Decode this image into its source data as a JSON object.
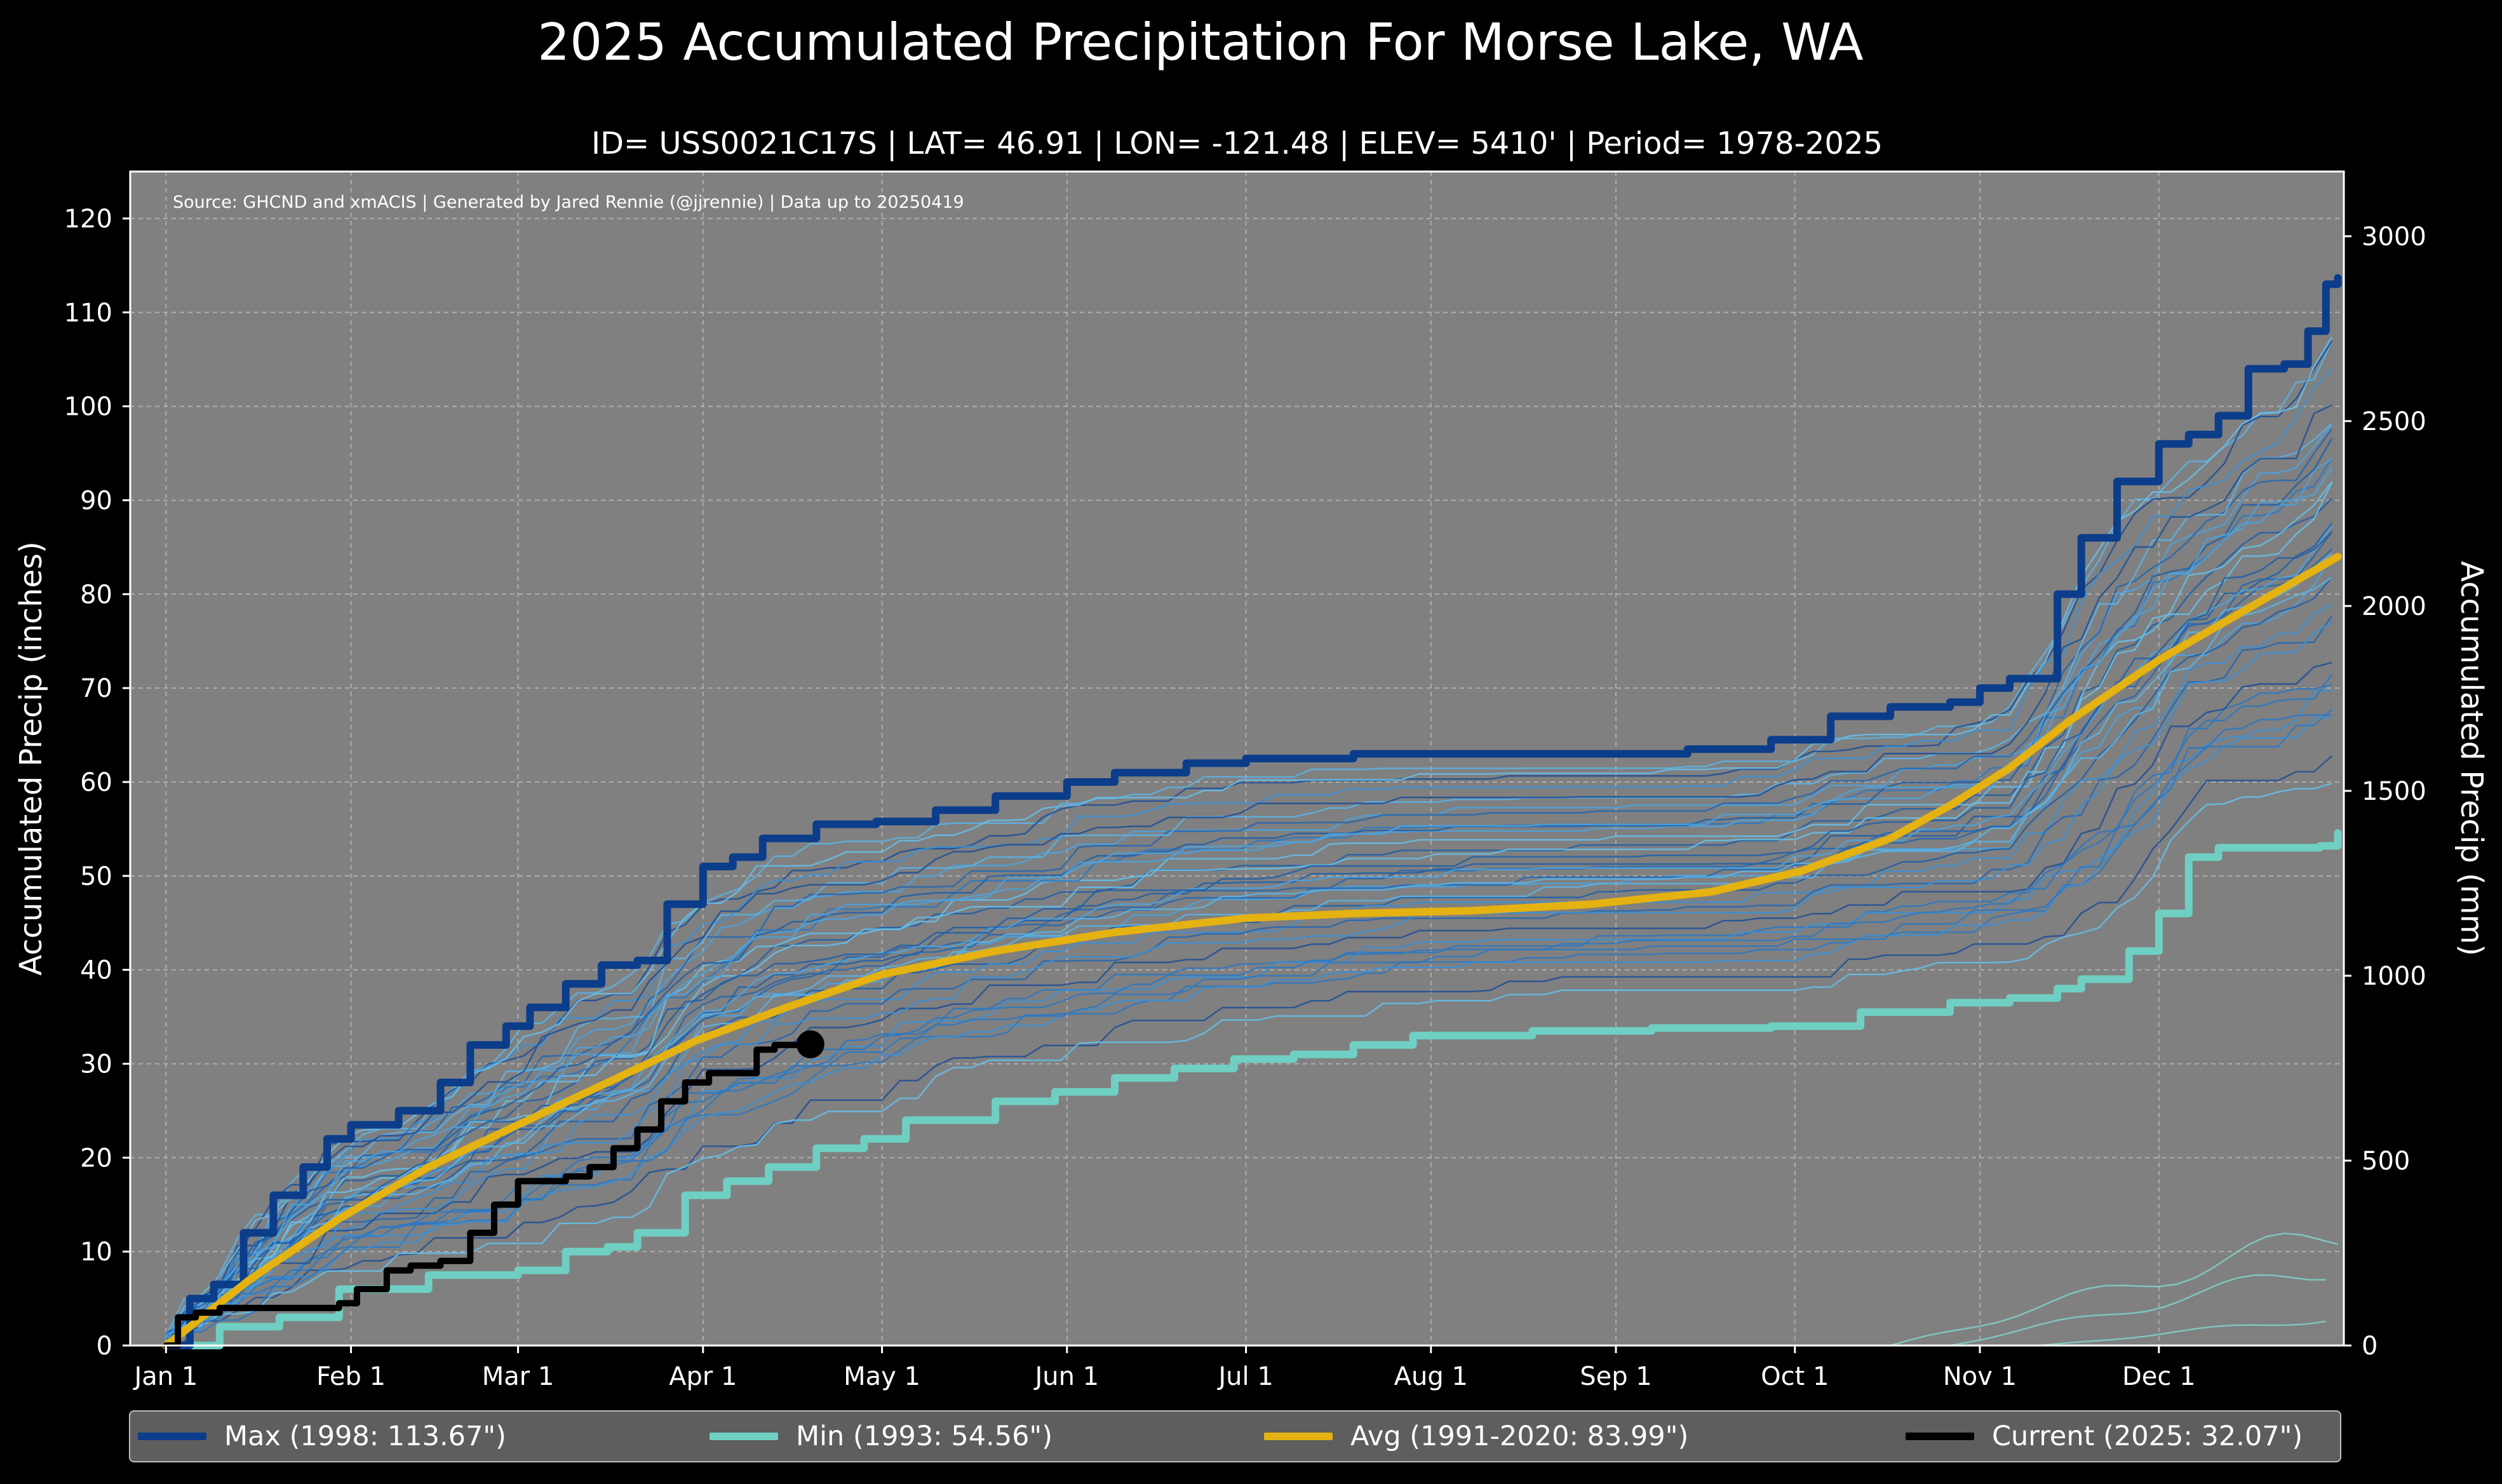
{
  "title": "2025 Accumulated Precipitation For Morse Lake, WA",
  "subtitle": "ID= USS0021C17S | LAT= 46.91 | LON= -121.48 | ELEV= 5410' | Period= 1978-2025",
  "source_note": "Source: GHCND and xmACIS | Generated by Jared Rennie (@jjrennie) | Data up to 20250419",
  "legend": {
    "max_label": "Max (1998: 113.67\")",
    "min_label": "Min (1993:  54.56\")",
    "avg_label": "Avg (1991-2020:  83.99\")",
    "current_label": "Current (2025:  32.07\")"
  },
  "colors": {
    "background": "#000000",
    "plot_bg": "#808080",
    "max": "#0b3d8a",
    "min": "#6fcfc2",
    "avg": "#e4b211",
    "current": "#000000"
  },
  "chart_data": {
    "type": "line",
    "title": "2025 Accumulated Precipitation For Morse Lake, WA",
    "xlabel": "",
    "ylabel": "Accumulated Precip (inches)",
    "y2label": "Accumulated Precip (mm)",
    "xlim": [
      -5,
      366
    ],
    "ylim": [
      0,
      125
    ],
    "y2lim": [
      0,
      3175
    ],
    "grid": true,
    "legend_position": "bottom",
    "x_ticks": [
      {
        "label": "Jan 1",
        "day": 1
      },
      {
        "label": "Feb 1",
        "day": 32
      },
      {
        "label": "Mar 1",
        "day": 60
      },
      {
        "label": "Apr 1",
        "day": 91
      },
      {
        "label": "May 1",
        "day": 121
      },
      {
        "label": "Jun 1",
        "day": 152
      },
      {
        "label": "Jul 1",
        "day": 182
      },
      {
        "label": "Aug 1",
        "day": 213
      },
      {
        "label": "Sep 1",
        "day": 244
      },
      {
        "label": "Oct 1",
        "day": 274
      },
      {
        "label": "Nov 1",
        "day": 305
      },
      {
        "label": "Dec 1",
        "day": 335
      }
    ],
    "y_ticks": [
      0,
      10,
      20,
      30,
      40,
      50,
      60,
      70,
      80,
      90,
      100,
      110,
      120
    ],
    "y2_ticks": [
      0,
      500,
      1000,
      1500,
      2000,
      2500,
      3000
    ],
    "series": [
      {
        "name": "Max (1998: 113.67\")",
        "role": "max",
        "x": [
          1,
          5,
          9,
          14,
          19,
          24,
          28,
          32,
          40,
          47,
          52,
          58,
          62,
          68,
          74,
          80,
          85,
          91,
          96,
          101,
          110,
          120,
          130,
          140,
          152,
          160,
          172,
          182,
          200,
          220,
          244,
          256,
          270,
          280,
          290,
          300,
          305,
          310,
          318,
          322,
          328,
          335,
          340,
          345,
          350,
          356,
          360,
          363,
          365
        ],
        "values": [
          0,
          5,
          6.5,
          12,
          16,
          19,
          22,
          23.5,
          25,
          28,
          32,
          34,
          36,
          38.5,
          40.5,
          41,
          47,
          51,
          52,
          54,
          55.5,
          55.8,
          57,
          58.5,
          60,
          61,
          62,
          62.5,
          63,
          63,
          63,
          63.5,
          64.5,
          67,
          68,
          68.5,
          70,
          71,
          80,
          86,
          92,
          96,
          97,
          99,
          104,
          104.5,
          108,
          113,
          113.67
        ]
      },
      {
        "name": "Min (1993:  54.56\")",
        "role": "min",
        "x": [
          1,
          10,
          20,
          30,
          45,
          60,
          68,
          75,
          80,
          88,
          95,
          102,
          110,
          118,
          125,
          140,
          150,
          160,
          170,
          180,
          190,
          200,
          210,
          230,
          250,
          270,
          285,
          300,
          310,
          318,
          322,
          330,
          335,
          340,
          345,
          362,
          365
        ],
        "values": [
          0,
          2,
          3,
          6,
          7.5,
          8,
          10,
          10.5,
          12,
          16,
          17.5,
          19,
          21,
          22,
          24,
          26,
          27,
          28.5,
          29.5,
          30.5,
          31,
          32,
          33,
          33.5,
          33.8,
          34,
          35.5,
          36.5,
          37,
          38,
          39,
          42,
          46,
          52,
          53,
          53.2,
          54.56
        ]
      },
      {
        "name": "Avg (1991-2020:  83.99\")",
        "role": "avg",
        "x": [
          1,
          15,
          30,
          45,
          60,
          75,
          90,
          105,
          121,
          140,
          160,
          182,
          200,
          220,
          240,
          260,
          275,
          290,
          300,
          310,
          320,
          335,
          350,
          365
        ],
        "values": [
          0,
          7,
          13.5,
          19,
          23.5,
          28,
          32.5,
          36,
          39.5,
          42,
          44,
          45.5,
          46,
          46.3,
          47,
          48.3,
          50.5,
          54,
          57.5,
          61.5,
          66.5,
          73,
          78.5,
          83.99
        ]
      },
      {
        "name": "Current (2025:  32.07\")",
        "role": "current",
        "x": [
          1,
          3,
          6,
          10,
          14,
          20,
          26,
          30,
          33,
          38,
          42,
          47,
          52,
          56,
          60,
          64,
          68,
          72,
          76,
          80,
          84,
          88,
          92,
          96,
          100,
          103,
          106,
          109
        ],
        "values": [
          0,
          3,
          3.5,
          4,
          4,
          4,
          4,
          4.5,
          6,
          8,
          8.5,
          9,
          12,
          15,
          17.5,
          17.5,
          18,
          19,
          21,
          23,
          26,
          28,
          29,
          29,
          31.5,
          32,
          32,
          32.07
        ]
      }
    ]
  }
}
